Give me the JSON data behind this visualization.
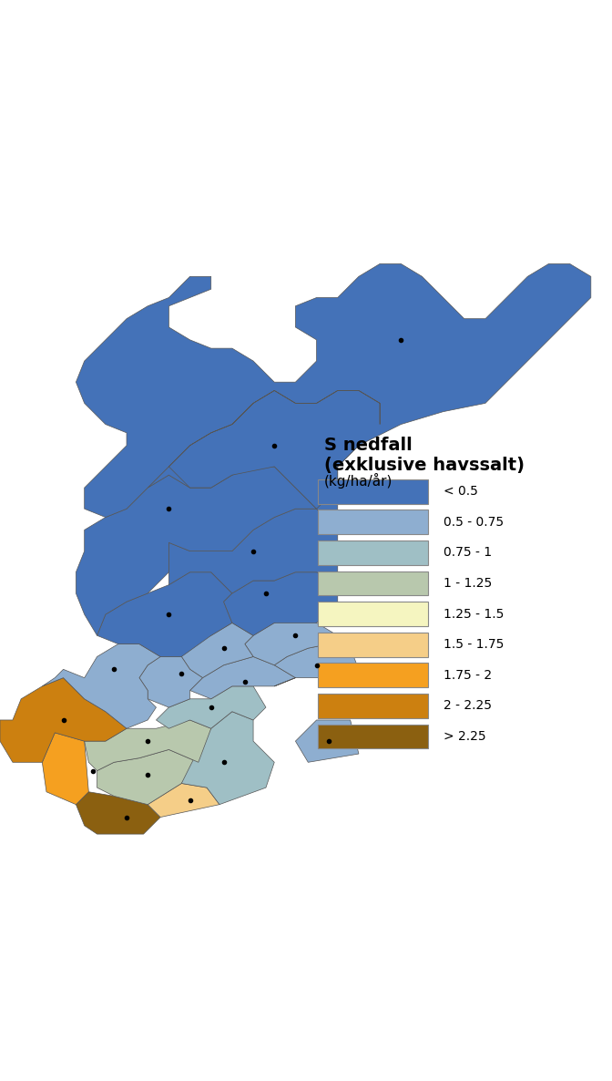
{
  "title": "S nedfall\n(exklusive havssalt)",
  "subtitle": "(kg/ha/år)",
  "legend_labels": [
    "< 0.5",
    "0.5 - 0.75",
    "0.75 - 1",
    "1 - 1.25",
    "1.25 - 1.5",
    "1.5 - 1.75",
    "1.75 - 2",
    "2 - 2.25",
    "> 2.25"
  ],
  "legend_colors": [
    "#4472B8",
    "#8EAED0",
    "#9FBFC5",
    "#B8C8AD",
    "#F5F5C0",
    "#F5CE88",
    "#F5A020",
    "#CC8010",
    "#8B6010"
  ],
  "background_color": "#FFFFFF",
  "county_colors": {
    "Norrbotten": "#4472B8",
    "Vasterbotten": "#4472B8",
    "Jamtland": "#4472B8",
    "Vasternorrland": "#4472B8",
    "Gavleborg": "#4472B8",
    "Dalarna": "#4472B8",
    "Varmland": "#8EAED0",
    "Uppsala": "#8EAED0",
    "Vastmanland": "#8EAED0",
    "Orebro": "#8EAED0",
    "Sodermanland": "#8EAED0",
    "Stockholm": "#8EAED0",
    "Ostergotland": "#9FBFC5",
    "Jonkoping": "#B8C8AD",
    "Kronoberg": "#B8C8AD",
    "Kalmar": "#9FBFC5",
    "Gotland": "#8EAED0",
    "Blekinge": "#F5CE88",
    "Halland": "#F5A020",
    "Vastra_Gotaland": "#CC8010",
    "Skane": "#8B6010"
  },
  "dot_color": "#000000",
  "dot_size": 6,
  "border_color": "#555555",
  "border_width": 0.5,
  "figsize": [
    6.72,
    11.86
  ],
  "dpi": 100
}
